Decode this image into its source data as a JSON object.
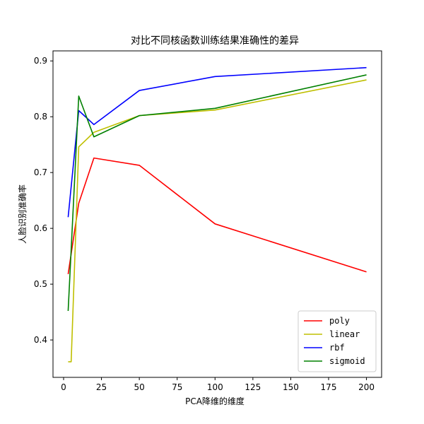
{
  "chart_data": {
    "type": "line",
    "title": "对比不同核函数训练结果准确性的差异",
    "xlabel": "PCA降维的维度",
    "ylabel": "人脸识别准确率",
    "xlim": [
      -7,
      210
    ],
    "ylim": [
      0.333,
      0.918
    ],
    "xticks": [
      0,
      25,
      50,
      75,
      100,
      125,
      150,
      175,
      200
    ],
    "yticks": [
      0.4,
      0.5,
      0.6,
      0.7,
      0.8,
      0.9
    ],
    "grid": false,
    "legend": "lower-right",
    "series": [
      {
        "name": "poly",
        "color": "#ff0000",
        "x": [
          3,
          10,
          20,
          50,
          100,
          200
        ],
        "y": [
          0.518,
          0.645,
          0.726,
          0.713,
          0.608,
          0.522
        ]
      },
      {
        "name": "linear",
        "color": "#bfbf00",
        "x": [
          3,
          5,
          10,
          20,
          50,
          100,
          200
        ],
        "y": [
          0.361,
          0.361,
          0.746,
          0.772,
          0.802,
          0.812,
          0.866
        ]
      },
      {
        "name": "rbf",
        "color": "#0000ff",
        "x": [
          3,
          10,
          20,
          50,
          100,
          200
        ],
        "y": [
          0.62,
          0.811,
          0.786,
          0.847,
          0.872,
          0.888
        ]
      },
      {
        "name": "sigmoid",
        "color": "#008000",
        "x": [
          3,
          10,
          20,
          50,
          100,
          200
        ],
        "y": [
          0.452,
          0.837,
          0.764,
          0.802,
          0.815,
          0.875
        ]
      }
    ]
  }
}
